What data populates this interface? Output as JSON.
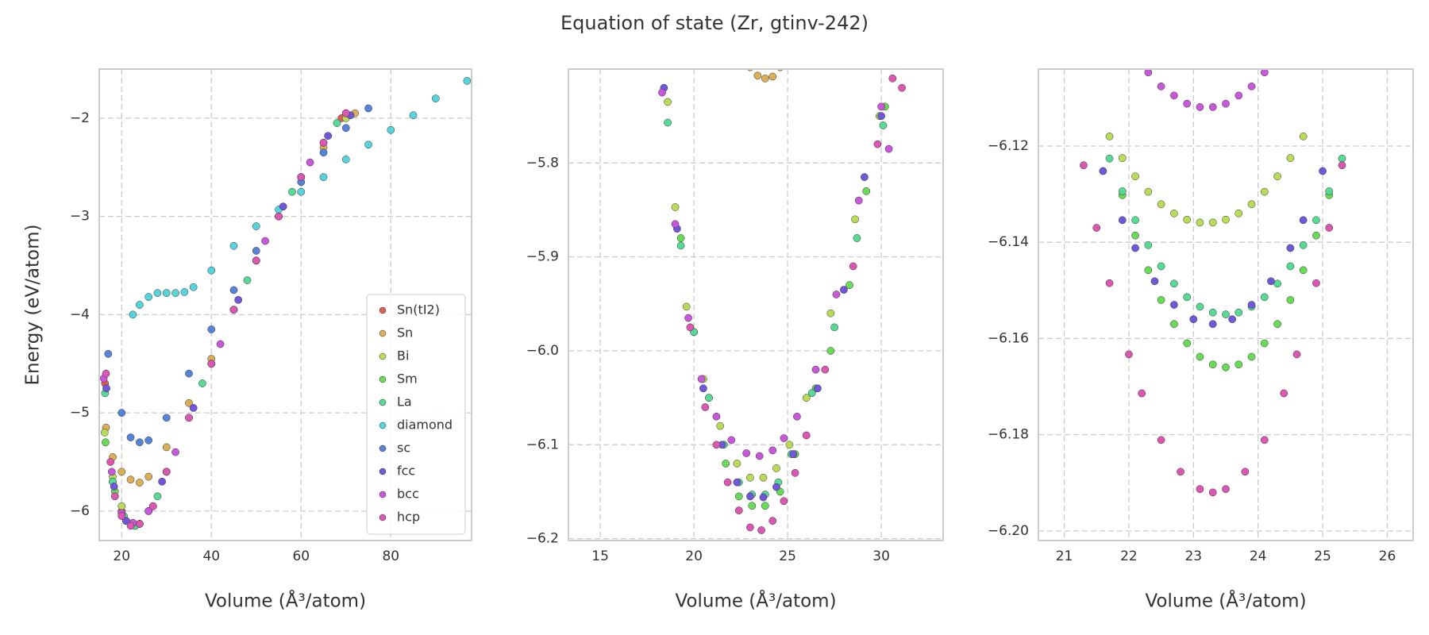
{
  "title": "Equation of state (Zr, gtinv-242)",
  "chart_data": [
    {
      "type": "scatter",
      "xlabel": "Volume (Å³/atom)",
      "ylabel": "Energy (eV/atom)",
      "xlim": [
        15,
        98
      ],
      "ylim": [
        -6.3,
        -1.5
      ],
      "xticks": [
        20,
        40,
        60,
        80
      ],
      "yticks": [
        {
          "value": -6,
          "label": "−6"
        },
        {
          "value": -5,
          "label": "−5"
        },
        {
          "value": -4,
          "label": "−4"
        },
        {
          "value": -3,
          "label": "−3"
        },
        {
          "value": -2,
          "label": "−2"
        }
      ],
      "grid": true,
      "legend": "lower right",
      "series": [
        {
          "name": "Sn(tI2)",
          "color": "#db5f57",
          "x": [
            16.3,
            18,
            20,
            23,
            26,
            30,
            40,
            50,
            60,
            69
          ],
          "y": [
            -4.7,
            -5.7,
            -6.0,
            -6.15,
            -6.0,
            -5.6,
            -4.5,
            -3.45,
            -2.6,
            -2.0
          ]
        },
        {
          "name": "Sn",
          "color": "#dbae57",
          "x": [
            16.5,
            18,
            20,
            22,
            24,
            26,
            30,
            35,
            40,
            45,
            50,
            55,
            60,
            65,
            72
          ],
          "y": [
            -5.15,
            -5.45,
            -5.6,
            -5.68,
            -5.71,
            -5.65,
            -5.35,
            -4.9,
            -4.45,
            -3.95,
            -3.45,
            -3.0,
            -2.6,
            -2.3,
            -1.95
          ]
        },
        {
          "name": "Bi",
          "color": "#b9db57",
          "x": [
            16.2,
            18,
            20,
            23,
            27,
            35,
            45,
            55,
            65,
            70
          ],
          "y": [
            -5.2,
            -5.65,
            -5.95,
            -6.14,
            -5.95,
            -5.05,
            -3.95,
            -3.0,
            -2.25,
            -2.0
          ]
        },
        {
          "name": "Sm",
          "color": "#69db57",
          "x": [
            16.4,
            18.5,
            21,
            24,
            30,
            40,
            50,
            60,
            70
          ],
          "y": [
            -5.3,
            -5.8,
            -6.1,
            -6.13,
            -5.6,
            -4.5,
            -3.45,
            -2.6,
            -1.95
          ]
        },
        {
          "name": "La",
          "color": "#57db94",
          "x": [
            16.3,
            18,
            20.5,
            23,
            28,
            38,
            48,
            58,
            68
          ],
          "y": [
            -4.8,
            -5.7,
            -6.05,
            -6.15,
            -5.85,
            -4.7,
            -3.65,
            -2.75,
            -2.05
          ]
        },
        {
          "name": "diamond",
          "color": "#57d3db",
          "x": [
            22.5,
            24,
            26,
            28,
            30,
            32,
            34,
            36,
            40,
            45,
            50,
            55,
            60,
            65,
            70,
            75,
            80,
            85,
            90,
            97
          ],
          "y": [
            -4.0,
            -3.9,
            -3.82,
            -3.78,
            -3.78,
            -3.78,
            -3.77,
            -3.72,
            -3.55,
            -3.3,
            -3.1,
            -2.93,
            -2.75,
            -2.6,
            -2.42,
            -2.27,
            -2.12,
            -1.97,
            -1.8,
            -1.62
          ]
        },
        {
          "name": "sc",
          "color": "#5784db",
          "x": [
            17,
            20,
            22,
            24,
            26,
            30,
            35,
            40,
            45,
            50,
            55,
            60,
            65,
            70,
            75
          ],
          "y": [
            -4.4,
            -5.0,
            -5.25,
            -5.3,
            -5.28,
            -5.05,
            -4.6,
            -4.15,
            -3.75,
            -3.35,
            -3.0,
            -2.65,
            -2.35,
            -2.1,
            -1.9
          ]
        },
        {
          "name": "fcc",
          "color": "#7057db",
          "x": [
            16.6,
            18.3,
            21,
            24,
            29,
            36,
            46,
            56,
            66,
            71
          ],
          "y": [
            -4.75,
            -5.75,
            -6.1,
            -6.13,
            -5.7,
            -4.95,
            -3.85,
            -2.9,
            -2.18,
            -1.97
          ]
        },
        {
          "name": "bcc",
          "color": "#c957db",
          "x": [
            16,
            17.8,
            20,
            22.5,
            26,
            32,
            42,
            52,
            62,
            70
          ],
          "y": [
            -4.65,
            -5.6,
            -6.02,
            -6.12,
            -6.0,
            -5.4,
            -4.3,
            -3.25,
            -2.45,
            -1.95
          ]
        },
        {
          "name": "hcp",
          "color": "#db57b2",
          "x": [
            16.5,
            17.5,
            18.5,
            20,
            22,
            24,
            27,
            30,
            35,
            40,
            45,
            50,
            55,
            60,
            65,
            70
          ],
          "y": [
            -4.6,
            -5.5,
            -5.85,
            -6.05,
            -6.15,
            -6.13,
            -5.95,
            -5.6,
            -5.05,
            -4.5,
            -3.95,
            -3.45,
            -3.0,
            -2.6,
            -2.25,
            -1.95
          ]
        }
      ]
    },
    {
      "type": "scatter",
      "xlabel": "Volume (Å³/atom)",
      "xlim": [
        13.3,
        33.3
      ],
      "ylim": [
        -6.202,
        -5.7
      ],
      "xticks": [
        15,
        20,
        25,
        30
      ],
      "yticks": [
        {
          "value": -6.2,
          "label": "−6.2"
        },
        {
          "value": -6.1,
          "label": "−6.1"
        },
        {
          "value": -6.0,
          "label": "−6.0"
        },
        {
          "value": -5.9,
          "label": "−5.9"
        },
        {
          "value": -5.8,
          "label": "−5.8"
        }
      ],
      "grid": true,
      "series": [
        {
          "color": "#dbae57",
          "x": [
            23.0,
            23.4,
            23.8,
            24.2,
            24.6
          ],
          "y": [
            -5.698,
            -5.707,
            -5.71,
            -5.708,
            -5.698
          ]
        },
        {
          "color": "#b9db57",
          "x": [
            18.6,
            19.0,
            19.6,
            20.5,
            21.4,
            22.3,
            23.0,
            23.7,
            24.4,
            25.1,
            26.0,
            27.3,
            28.6,
            29.9
          ],
          "y": [
            -5.735,
            -5.847,
            -5.953,
            -6.03,
            -6.08,
            -6.12,
            -6.135,
            -6.135,
            -6.125,
            -6.1,
            -6.05,
            -5.96,
            -5.86,
            -5.75
          ]
        },
        {
          "color": "#69db57",
          "x": [
            19.3,
            20.0,
            20.8,
            21.7,
            22.4,
            23.1,
            23.8,
            24.6,
            25.4,
            26.5,
            27.3,
            28.3,
            29.2,
            30.2
          ],
          "y": [
            -5.88,
            -5.98,
            -6.05,
            -6.12,
            -6.155,
            -6.165,
            -6.165,
            -6.15,
            -6.11,
            -6.04,
            -6.0,
            -5.93,
            -5.83,
            -5.74
          ]
        },
        {
          "color": "#57db94",
          "x": [
            18.6,
            19.3,
            20.0,
            20.8,
            21.6,
            22.4,
            23.1,
            23.8,
            24.5,
            25.2,
            26.3,
            27.5,
            28.7,
            30.1
          ],
          "y": [
            -5.757,
            -5.888,
            -5.98,
            -6.05,
            -6.1,
            -6.14,
            -6.153,
            -6.153,
            -6.14,
            -6.11,
            -6.045,
            -5.975,
            -5.88,
            -5.76
          ]
        },
        {
          "color": "#7057db",
          "x": [
            18.4,
            19.1,
            20.5,
            21.5,
            22.3,
            23.0,
            23.7,
            24.4,
            25.3,
            26.6,
            28.0,
            29.1,
            30.0
          ],
          "y": [
            -5.72,
            -5.87,
            -6.04,
            -6.1,
            -6.14,
            -6.155,
            -6.156,
            -6.145,
            -6.11,
            -6.04,
            -5.935,
            -5.815,
            -5.75
          ]
        },
        {
          "color": "#c957db",
          "x": [
            18.3,
            19.0,
            19.7,
            20.4,
            21.2,
            22.0,
            22.8,
            23.5,
            24.2,
            24.8,
            25.5,
            26.5,
            27.6,
            28.8,
            30.0,
            30.4
          ],
          "y": [
            -5.725,
            -5.865,
            -5.965,
            -6.03,
            -6.07,
            -6.095,
            -6.109,
            -6.112,
            -6.106,
            -6.093,
            -6.07,
            -6.02,
            -5.94,
            -5.84,
            -5.74,
            -5.785
          ]
        },
        {
          "color": "#db57b2",
          "x": [
            19.8,
            20.6,
            21.2,
            21.8,
            22.4,
            23.0,
            23.6,
            24.2,
            24.8,
            25.4,
            26.0,
            27.0,
            28.5,
            29.8,
            30.6,
            31.1
          ],
          "y": [
            -5.975,
            -6.06,
            -6.1,
            -6.14,
            -6.17,
            -6.188,
            -6.191,
            -6.181,
            -6.16,
            -6.13,
            -6.09,
            -6.02,
            -5.91,
            -5.78,
            -5.71,
            -5.72
          ]
        }
      ]
    },
    {
      "type": "scatter",
      "xlabel": "Volume (Å³/atom)",
      "xlim": [
        20.6,
        26.4
      ],
      "ylim": [
        -6.202,
        -6.104
      ],
      "xticks": [
        21,
        22,
        23,
        24,
        25,
        26
      ],
      "yticks": [
        {
          "value": -6.2,
          "label": "−6.20"
        },
        {
          "value": -6.18,
          "label": "−6.18"
        },
        {
          "value": -6.16,
          "label": "−6.16"
        },
        {
          "value": -6.14,
          "label": "−6.14"
        },
        {
          "value": -6.12,
          "label": "−6.12"
        }
      ],
      "grid": true,
      "series": [
        {
          "color": "#b9db57",
          "x": [
            21.7,
            21.9,
            22.1,
            22.3,
            22.5,
            22.7,
            22.9,
            23.1,
            23.3,
            23.5,
            23.7,
            23.9,
            24.1,
            24.3,
            24.5,
            24.7
          ],
          "y": [
            -6.118,
            -6.1225,
            -6.1263,
            -6.1295,
            -6.1321,
            -6.134,
            -6.1353,
            -6.1359,
            -6.1359,
            -6.1353,
            -6.134,
            -6.1321,
            -6.1295,
            -6.1263,
            -6.1225,
            -6.118
          ]
        },
        {
          "color": "#69db57",
          "x": [
            21.9,
            22.1,
            22.3,
            22.5,
            22.7,
            22.9,
            23.1,
            23.3,
            23.5,
            23.7,
            23.9,
            24.1,
            24.3,
            24.5,
            24.7,
            24.9,
            25.1
          ],
          "y": [
            -6.1302,
            -6.1386,
            -6.1458,
            -6.152,
            -6.157,
            -6.161,
            -6.1638,
            -6.1654,
            -6.166,
            -6.1654,
            -6.1638,
            -6.161,
            -6.157,
            -6.152,
            -6.1458,
            -6.1386,
            -6.1302
          ]
        },
        {
          "color": "#57db94",
          "x": [
            21.7,
            21.9,
            22.1,
            22.3,
            22.5,
            22.7,
            22.9,
            23.1,
            23.3,
            23.5,
            23.7,
            23.9,
            24.1,
            24.3,
            24.5,
            24.7,
            24.9,
            25.1,
            25.3
          ],
          "y": [
            -6.1226,
            -6.1294,
            -6.1354,
            -6.1406,
            -6.145,
            -6.1486,
            -6.1514,
            -6.1534,
            -6.1546,
            -6.155,
            -6.1546,
            -6.1534,
            -6.1514,
            -6.1486,
            -6.145,
            -6.1406,
            -6.1354,
            -6.1294,
            -6.1226
          ]
        },
        {
          "color": "#7057db",
          "x": [
            21.6,
            21.9,
            22.1,
            22.4,
            22.7,
            23.0,
            23.3,
            23.6,
            23.9,
            24.2,
            24.5,
            24.7,
            25.0
          ],
          "y": [
            -6.1252,
            -6.1354,
            -6.1412,
            -6.1481,
            -6.153,
            -6.156,
            -6.157,
            -6.156,
            -6.153,
            -6.1481,
            -6.1412,
            -6.1354,
            -6.1252
          ]
        },
        {
          "color": "#c957db",
          "x": [
            22.3,
            22.5,
            22.7,
            22.9,
            23.1,
            23.3,
            23.5,
            23.7,
            23.9,
            24.1
          ],
          "y": [
            -6.1047,
            -6.1076,
            -6.1095,
            -6.1112,
            -6.1119,
            -6.1119,
            -6.1112,
            -6.1095,
            -6.1076,
            -6.1047
          ]
        },
        {
          "color": "#db57b2",
          "x": [
            21.3,
            21.5,
            21.7,
            22.0,
            22.2,
            22.5,
            22.8,
            23.1,
            23.3,
            23.5,
            23.8,
            24.1,
            24.4,
            24.6,
            24.9,
            25.1,
            25.3
          ],
          "y": [
            -6.124,
            -6.137,
            -6.1485,
            -6.1633,
            -6.1714,
            -6.1811,
            -6.1877,
            -6.1913,
            -6.192,
            -6.1913,
            -6.1877,
            -6.1811,
            -6.1714,
            -6.1633,
            -6.1485,
            -6.137,
            -6.124
          ]
        }
      ]
    }
  ]
}
